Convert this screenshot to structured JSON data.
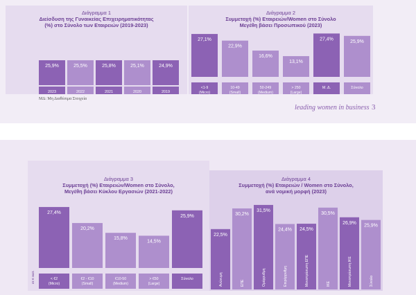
{
  "footnote": "ΜΔ: Μη Διαθέσιμα Στοιχεία",
  "tagline": "leading women in business",
  "page_number": "3",
  "chart_data": [
    {
      "type": "bar",
      "title_line1": "Διάγραμμα 1",
      "title_line2": "Διείσδυση της Γυναικείας Επιχειρηματικότητας",
      "title_line3": "(%) στο Σύνολο των Εταιρειών (2019-2023)",
      "categories": [
        "2023",
        "2022",
        "2021",
        "2020",
        "2019"
      ],
      "values": [
        25.9,
        25.5,
        25.8,
        25.1,
        24.9
      ],
      "labels": [
        "25,9%",
        "25,5%",
        "25,8%",
        "25,1%",
        "24,9%"
      ],
      "label_style": "equal-height"
    },
    {
      "type": "bar",
      "title_line1": "Διάγραμμα 2",
      "title_line2": "Συμμετοχή (%) Εταιρειών/Women στο Σύνολο",
      "title_line3": "Μεγέθη βάσει Προσωπικού (2023)",
      "categories": [
        "<1-9 (Micro)",
        "10-49 (Small)",
        "50-249 (Medium)",
        "> 250 (Large)",
        "Μ. Δ.",
        "Σύνολο"
      ],
      "values": [
        27.1,
        22.9,
        16.6,
        13.1,
        27.4,
        25.9
      ],
      "labels": [
        "27,1%",
        "22,9%",
        "16,6%",
        "13,1%",
        "27,4%",
        "25,9%"
      ]
    },
    {
      "type": "bar",
      "title_line1": "Διάγραμμα 3",
      "title_line2": "Συμμετοχή (%) Εταιρειών/Women στο Σύνολο,",
      "title_line3": "Μεγέθη βάσει Κύκλου Εργασιών (2021-2022)",
      "categories": [
        "< €2 (Micro)",
        "€2 - €10 (Small)",
        "€10-50 (Medium)",
        "> €50 (Large)",
        "Σύνολο"
      ],
      "values": [
        27.4,
        20.2,
        15.8,
        14.5,
        25.9
      ],
      "labels": [
        "27,4%",
        "20,2%",
        "15,8%",
        "14,5%",
        "25,9%"
      ],
      "side_note": "σε € εκατ."
    },
    {
      "type": "bar",
      "title_line1": "Διάγραμμα 4",
      "title_line2": "Συμμετοχή (%) Εταιρειών / Women στο Σύνολο,",
      "title_line3": "ανά νομική μορφή (2023)",
      "categories": [
        "Ανώνυμη",
        "ΕΠΕ",
        "Ομόρρυθμη",
        "Ετερόρρυθμη",
        "Μονοπρόσωπη ΕΠΕ",
        "ΙΚΕ",
        "Μονοπρόσωπη ΙΚΕ",
        "Σύνολο"
      ],
      "values": [
        22.5,
        30.2,
        31.5,
        24.4,
        24.5,
        30.5,
        26.9,
        25.9
      ],
      "labels": [
        "22,5%",
        "30,2%",
        "31,5%",
        "24,4%",
        "24,5%",
        "30,5%",
        "26,9%",
        "25,9%"
      ]
    }
  ],
  "colors": {
    "dark": "#8c62b4",
    "light": "#ae8fcd",
    "text": "#6a3d93",
    "panel": "#e6dcef",
    "band": "#eee7f4"
  }
}
